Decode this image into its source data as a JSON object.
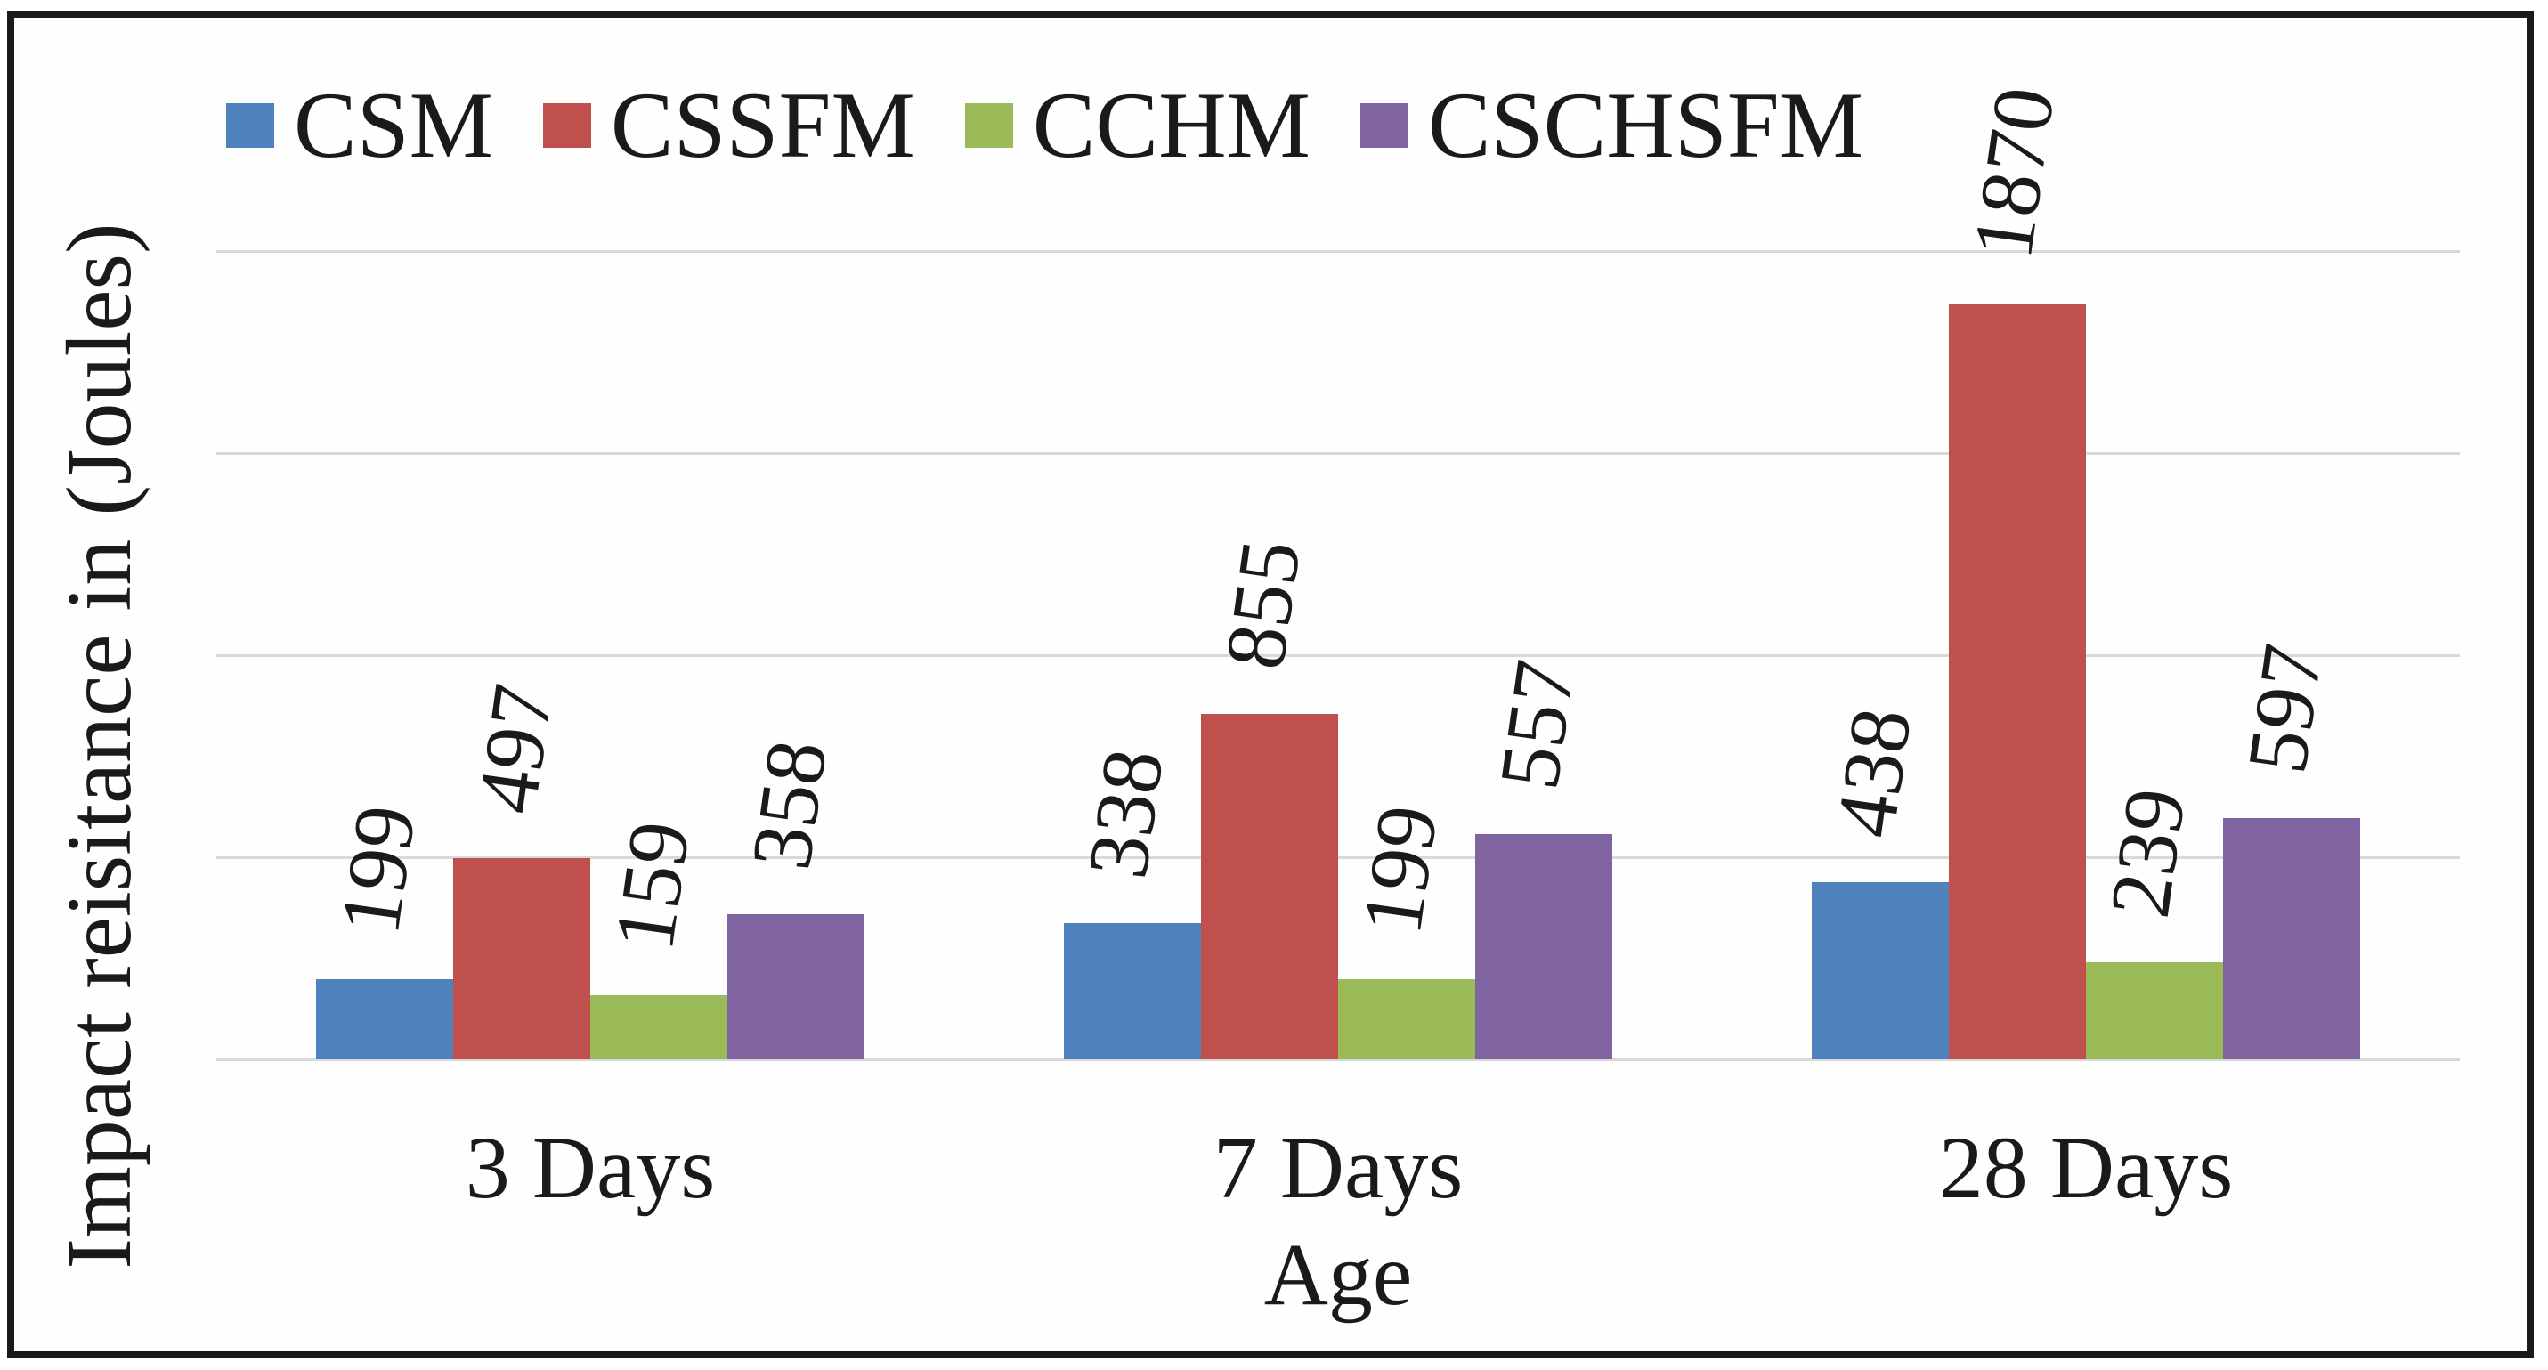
{
  "figure": {
    "frame_color": "#1b1b1b",
    "background": "#ffffff",
    "text_color": "#1a1a1a"
  },
  "chart_data": {
    "type": "bar",
    "title": "",
    "categories": [
      "3 Days",
      "7 Days",
      "28 Days"
    ],
    "series": [
      {
        "name": "CSM",
        "color": "#4f81bd",
        "values": [
          199,
          338,
          438
        ]
      },
      {
        "name": "CSSFM",
        "color": "#c0504d",
        "values": [
          497,
          855,
          1870
        ]
      },
      {
        "name": "CCHM",
        "color": "#9bbb59",
        "values": [
          159,
          199,
          239
        ]
      },
      {
        "name": "CSCHSFM",
        "color": "#8064a2",
        "values": [
          358,
          557,
          597
        ]
      }
    ],
    "data_labels": [
      [
        "199",
        "497",
        "159",
        "358"
      ],
      [
        "338",
        "855",
        "199",
        "557"
      ],
      [
        "438",
        "1870",
        "239",
        "597"
      ]
    ],
    "xlabel": "Age",
    "ylabel": "Impact reisitance in (Joules)",
    "ylim": [
      0,
      2000
    ],
    "gridline_step": 500,
    "grid": true,
    "gridline_color": "#d9d9d9",
    "legend_position": "top",
    "y_tick_labels": "hidden",
    "data_label_rotation_deg": -82
  }
}
